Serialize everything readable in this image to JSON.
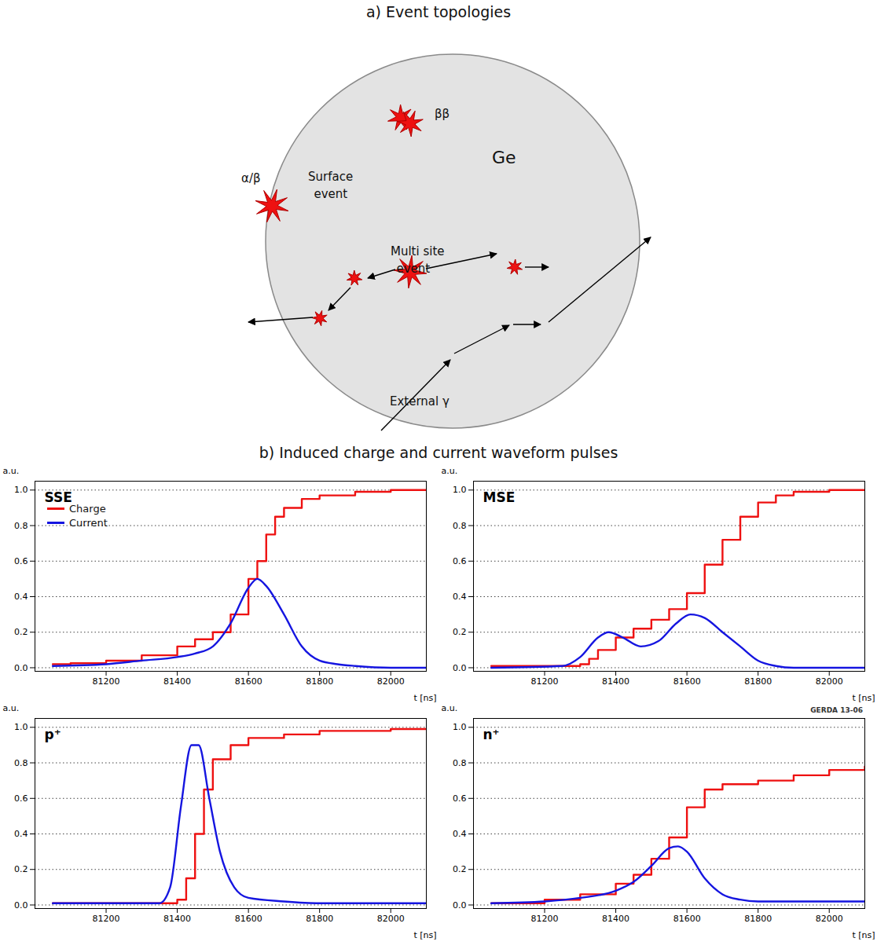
{
  "diagram": {
    "title": "a) Event topologies",
    "labels": {
      "double_beta": "ββ",
      "material": "Ge",
      "surface_particle": "α/β",
      "surface": "Surface event",
      "multi_site": "Multi site event",
      "external": "External γ"
    }
  },
  "title": "b) Induced charge and current waveform pulses",
  "chart_data": [
    {
      "type": "line",
      "title": "SSE",
      "x_label": "t [ns]",
      "y_label": "a.u.",
      "xlim": [
        81000,
        82100
      ],
      "xticks": [
        81200,
        81400,
        81600,
        81800,
        82000
      ],
      "ylim": [
        -0.02,
        1.05
      ],
      "yticks": [
        {
          "value": 0,
          "label": "0.0"
        },
        {
          "value": 0.2,
          "label": "0.2"
        },
        {
          "value": 0.4,
          "label": "0.4"
        },
        {
          "value": 0.6,
          "label": "0.6"
        },
        {
          "value": 0.8,
          "label": "0.8"
        },
        {
          "value": 1,
          "label": "1.0"
        }
      ],
      "grid": true,
      "legend": "top-left",
      "series": [
        {
          "name": "Charge",
          "color": "#ee1111",
          "line_style": "step",
          "x": [
            81050,
            81100,
            81200,
            81300,
            81400,
            81450,
            81500,
            81550,
            81600,
            81625,
            81650,
            81675,
            81700,
            81750,
            81800,
            81900,
            82000,
            82100
          ],
          "values": [
            0.02,
            0.025,
            0.04,
            0.07,
            0.12,
            0.16,
            0.2,
            0.3,
            0.5,
            0.6,
            0.75,
            0.85,
            0.9,
            0.95,
            0.97,
            0.99,
            1.0,
            1.0
          ]
        },
        {
          "name": "Current",
          "color": "#1515e0",
          "line_style": "solid",
          "x": [
            81050,
            81200,
            81300,
            81400,
            81450,
            81500,
            81550,
            81600,
            81625,
            81650,
            81700,
            81750,
            81800,
            81850,
            81900,
            82000,
            82100
          ],
          "values": [
            0.01,
            0.02,
            0.04,
            0.06,
            0.08,
            0.12,
            0.25,
            0.45,
            0.5,
            0.46,
            0.3,
            0.12,
            0.04,
            0.02,
            0.01,
            0.0,
            0.0
          ]
        }
      ]
    },
    {
      "type": "line",
      "title": "MSE",
      "x_label": "t [ns]",
      "y_label": "a.u.",
      "xlim": [
        81000,
        82100
      ],
      "xticks": [
        81200,
        81400,
        81600,
        81800,
        82000
      ],
      "ylim": [
        -0.02,
        1.05
      ],
      "yticks": [
        {
          "value": 0,
          "label": "0.0"
        },
        {
          "value": 0.2,
          "label": "0.2"
        },
        {
          "value": 0.4,
          "label": "0.4"
        },
        {
          "value": 0.6,
          "label": "0.6"
        },
        {
          "value": 0.8,
          "label": "0.8"
        },
        {
          "value": 1,
          "label": "1.0"
        }
      ],
      "grid": true,
      "series": [
        {
          "name": "Charge",
          "color": "#ee1111",
          "line_style": "step",
          "x": [
            81050,
            81250,
            81300,
            81325,
            81350,
            81400,
            81450,
            81500,
            81550,
            81600,
            81650,
            81700,
            81750,
            81800,
            81850,
            81900,
            82000,
            82100
          ],
          "values": [
            0.01,
            0.01,
            0.02,
            0.05,
            0.1,
            0.17,
            0.22,
            0.27,
            0.33,
            0.42,
            0.58,
            0.72,
            0.85,
            0.93,
            0.97,
            0.99,
            1.0,
            1.0
          ]
        },
        {
          "name": "Current",
          "color": "#1515e0",
          "line_style": "solid",
          "x": [
            81050,
            81250,
            81300,
            81350,
            81380,
            81420,
            81470,
            81520,
            81570,
            81610,
            81650,
            81700,
            81750,
            81800,
            81850,
            81900,
            82100
          ],
          "values": [
            0.0,
            0.01,
            0.06,
            0.17,
            0.2,
            0.17,
            0.12,
            0.15,
            0.25,
            0.3,
            0.28,
            0.2,
            0.12,
            0.04,
            0.01,
            0.0,
            0.0
          ]
        }
      ]
    },
    {
      "type": "line",
      "title": "p⁺",
      "x_label": "t [ns]",
      "y_label": "a.u.",
      "xlim": [
        81000,
        82100
      ],
      "xticks": [
        81200,
        81400,
        81600,
        81800,
        82000
      ],
      "ylim": [
        -0.02,
        1.05
      ],
      "yticks": [
        {
          "value": 0,
          "label": "0.0"
        },
        {
          "value": 0.2,
          "label": "0.2"
        },
        {
          "value": 0.4,
          "label": "0.4"
        },
        {
          "value": 0.6,
          "label": "0.6"
        },
        {
          "value": 0.8,
          "label": "0.8"
        },
        {
          "value": 1,
          "label": "1.0"
        }
      ],
      "grid": true,
      "series": [
        {
          "name": "Charge",
          "color": "#ee1111",
          "line_style": "step",
          "x": [
            81050,
            81350,
            81400,
            81425,
            81450,
            81475,
            81500,
            81550,
            81600,
            81700,
            81800,
            82000,
            82100
          ],
          "values": [
            0.01,
            0.01,
            0.03,
            0.15,
            0.4,
            0.65,
            0.82,
            0.9,
            0.94,
            0.96,
            0.98,
            0.99,
            0.99
          ]
        },
        {
          "name": "Current",
          "color": "#1515e0",
          "line_style": "solid",
          "x": [
            81050,
            81350,
            81380,
            81410,
            81440,
            81460,
            81490,
            81520,
            81560,
            81600,
            81700,
            81800,
            82100
          ],
          "values": [
            0.01,
            0.01,
            0.1,
            0.55,
            0.9,
            0.9,
            0.6,
            0.3,
            0.1,
            0.04,
            0.02,
            0.01,
            0.01
          ]
        }
      ]
    },
    {
      "type": "line",
      "title": "n⁺",
      "x_label": "t [ns]",
      "y_label": "a.u.",
      "xlim": [
        81000,
        82100
      ],
      "xticks": [
        81200,
        81400,
        81600,
        81800,
        82000
      ],
      "ylim": [
        -0.02,
        1.05
      ],
      "yticks": [
        {
          "value": 0,
          "label": "0.0"
        },
        {
          "value": 0.2,
          "label": "0.2"
        },
        {
          "value": 0.4,
          "label": "0.4"
        },
        {
          "value": 0.6,
          "label": "0.6"
        },
        {
          "value": 0.8,
          "label": "0.8"
        },
        {
          "value": 1,
          "label": "1.0"
        }
      ],
      "grid": true,
      "annotations": [
        "GERDA 13-06"
      ],
      "series": [
        {
          "name": "Charge",
          "color": "#ee1111",
          "line_style": "step",
          "x": [
            81050,
            81200,
            81300,
            81400,
            81450,
            81500,
            81550,
            81600,
            81650,
            81700,
            81800,
            81900,
            82000,
            82100
          ],
          "values": [
            0.01,
            0.03,
            0.06,
            0.12,
            0.17,
            0.26,
            0.38,
            0.55,
            0.65,
            0.68,
            0.7,
            0.73,
            0.76,
            0.78
          ]
        },
        {
          "name": "Current",
          "color": "#1515e0",
          "line_style": "solid",
          "x": [
            81050,
            81200,
            81300,
            81400,
            81450,
            81500,
            81550,
            81575,
            81600,
            81650,
            81700,
            81750,
            81800,
            82100
          ],
          "values": [
            0.01,
            0.02,
            0.04,
            0.08,
            0.13,
            0.22,
            0.32,
            0.33,
            0.3,
            0.15,
            0.06,
            0.03,
            0.02,
            0.02
          ]
        }
      ]
    }
  ]
}
